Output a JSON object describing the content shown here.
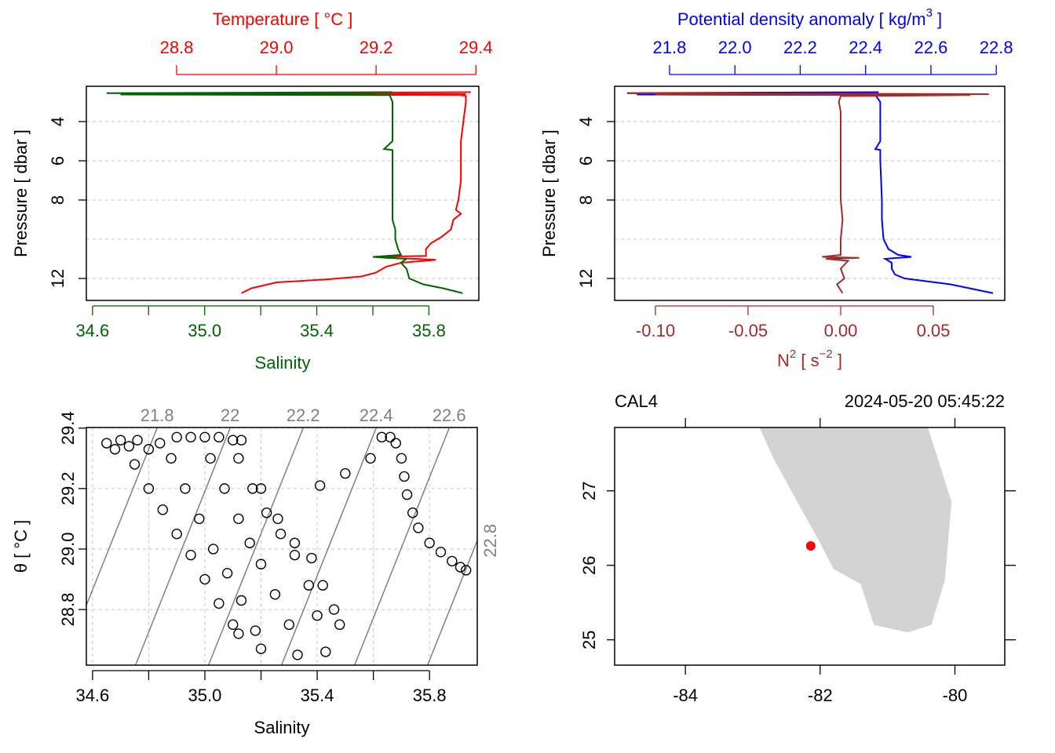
{
  "chart_data": [
    {
      "type": "profile",
      "title": "Temperature [ °C ]",
      "xlabel": "Salinity",
      "ylabel": "Pressure [ dbar ]",
      "ylim": [
        13.12,
        2.2
      ],
      "yticks": [
        4,
        6,
        8,
        12
      ],
      "ygrid": [
        4,
        6,
        8,
        10,
        12
      ],
      "xlim": [
        34.578,
        35.978
      ],
      "xticks": [
        34.6,
        {
          "value": 35,
          "label": "35.0"
        },
        35.4,
        35.8
      ],
      "xminor": [
        34.8,
        35.2,
        35.6
      ],
      "xcolor": "#006400",
      "x2lim": [
        28.619,
        29.406
      ],
      "x2ticks": [
        28.8,
        {
          "value": 29,
          "label": "29.0"
        },
        29.2,
        29.4
      ],
      "x2color": "#ff0000",
      "series": [
        {
          "axis": "x2",
          "color": "#ff0000",
          "pressure": [
            2.5,
            2.55,
            2.6,
            2.62,
            2.65,
            2.7,
            3.0,
            4,
            5,
            6,
            7,
            8,
            8.5,
            8.7,
            9,
            9.5,
            9.9,
            10.2,
            10.5,
            10.85,
            10.9,
            10.95,
            11.0,
            11.05,
            11.2,
            11.4,
            11.7,
            11.9,
            12.05,
            12.2,
            12.5,
            12.75
          ],
          "values": [
            29.39,
            28.95,
            29.38,
            28.9,
            29.37,
            29.38,
            29.38,
            29.375,
            29.37,
            29.37,
            29.37,
            29.365,
            29.36,
            29.37,
            29.355,
            29.35,
            29.33,
            29.31,
            29.3,
            29.3,
            29.2,
            29.22,
            29.28,
            29.32,
            29.25,
            29.22,
            29.2,
            29.17,
            29.1,
            29.0,
            28.95,
            28.93
          ]
        },
        {
          "axis": "x",
          "color": "#006400",
          "pressure": [
            2.5,
            2.55,
            2.6,
            2.62,
            2.65,
            3.0,
            4,
            5,
            5.4,
            5.45,
            5.5,
            6,
            7,
            8,
            9,
            9.5,
            10,
            10.5,
            10.8,
            10.9,
            11.0,
            11.2,
            11.5,
            12.0,
            12.3,
            12.5,
            12.75
          ],
          "values": [
            35.67,
            34.65,
            35.6,
            34.7,
            35.66,
            35.67,
            35.67,
            35.67,
            35.64,
            35.67,
            35.67,
            35.67,
            35.67,
            35.67,
            35.67,
            35.68,
            35.68,
            35.69,
            35.7,
            35.6,
            35.72,
            35.7,
            35.72,
            35.73,
            35.78,
            35.85,
            35.92
          ]
        }
      ]
    },
    {
      "type": "profile",
      "title_parts": [
        {
          "text": "Potential density anomaly [ kg/m"
        },
        {
          "text": "3",
          "sup": true
        },
        {
          "text": " ]"
        }
      ],
      "xlabel_parts": [
        {
          "text": "N"
        },
        {
          "text": "2",
          "sup": true
        },
        {
          "text": " [ s"
        },
        {
          "text": "−2",
          "sup": true
        },
        {
          "text": " ]"
        }
      ],
      "ylabel": "Pressure [ dbar ]",
      "ylim": [
        13.12,
        2.2
      ],
      "yticks": [
        4,
        6,
        8,
        12
      ],
      "ygrid": [
        4,
        6,
        8,
        10,
        12
      ],
      "xlim": [
        -0.12203,
        0.08856
      ],
      "xticks": [
        {
          "value": -0.1,
          "label": "-0.10"
        },
        -0.05,
        {
          "value": 0,
          "label": "0.00"
        },
        0.05
      ],
      "xcolor": "#a52a2a",
      "x2lim": [
        21.632,
        22.826
      ],
      "x2ticks": [
        21.8,
        {
          "value": 22,
          "label": "22.0"
        },
        22.2,
        22.4,
        22.6,
        22.8
      ],
      "x2color": "#0000ff",
      "series": [
        {
          "axis": "x2",
          "color": "#0000ff",
          "pressure": [
            2.5,
            2.55,
            2.6,
            2.62,
            2.65,
            3.0,
            4,
            5,
            5.4,
            5.45,
            5.5,
            6,
            8,
            9,
            10,
            10.5,
            10.8,
            10.9,
            11.0,
            11.2,
            11.5,
            11.8,
            12.0,
            12.3,
            12.75
          ],
          "values": [
            22.44,
            21.67,
            22.4,
            21.7,
            22.43,
            22.445,
            22.445,
            22.445,
            22.43,
            22.445,
            22.445,
            22.445,
            22.45,
            22.45,
            22.455,
            22.47,
            22.5,
            22.54,
            22.46,
            22.48,
            22.48,
            22.49,
            22.52,
            22.66,
            22.79
          ]
        },
        {
          "axis": "x",
          "color": "#a52a2a",
          "pressure": [
            2.55,
            2.6,
            2.62,
            2.65,
            2.7,
            3.0,
            3.5,
            4,
            6,
            8,
            9,
            10,
            10.8,
            10.9,
            10.95,
            11.0,
            11.1,
            11.5,
            12.0,
            12.3,
            12.75
          ],
          "values": [
            -0.115,
            0.08,
            -0.1,
            0.07,
            0.0,
            -0.001,
            0.0,
            0.0,
            0.0,
            0.0,
            0.001,
            0.0,
            0.0,
            -0.01,
            0.01,
            -0.008,
            0.004,
            0.0,
            0.002,
            -0.002,
            0.001
          ]
        }
      ]
    },
    {
      "type": "ts",
      "xlabel": "Salinity",
      "ylabel": "θ [ °C ]",
      "xlim": [
        34.578,
        35.97
      ],
      "xticks": [
        34.6,
        {
          "value": 35,
          "label": "35.0"
        },
        35.4,
        35.8
      ],
      "xminor": [
        34.8,
        35.2,
        35.6
      ],
      "xgrid": [
        34.6,
        34.8,
        35.0,
        35.2,
        35.4,
        35.6,
        35.8
      ],
      "ylim": [
        28.616,
        29.402
      ],
      "yticks": [
        28.8,
        {
          "value": 29,
          "label": "29.0"
        },
        29.2,
        29.4
      ],
      "ygrid": [
        28.8,
        29.0,
        29.2,
        29.4
      ],
      "color": "#000000",
      "isopycnal_color": "#808080",
      "isopycnals": [
        {
          "level": 21.8,
          "S": [
            34.83,
            34.493
          ],
          "T": [
            29.4,
            28.616
          ]
        },
        {
          "level": 22,
          "S": [
            35.09,
            34.753
          ],
          "T": [
            29.4,
            28.616
          ]
        },
        {
          "level": 22.2,
          "S": [
            35.35,
            35.013
          ],
          "T": [
            29.4,
            28.616
          ]
        },
        {
          "level": 22.4,
          "S": [
            35.61,
            35.273
          ],
          "T": [
            29.4,
            28.616
          ]
        },
        {
          "level": 22.6,
          "S": [
            35.87,
            35.533
          ],
          "T": [
            29.4,
            28.616
          ]
        },
        {
          "level": 22.8,
          "S": [
            36.13,
            35.793
          ],
          "T": [
            29.4,
            28.616
          ]
        }
      ],
      "S": [
        34.65,
        34.68,
        34.7,
        34.73,
        34.76,
        34.8,
        34.84,
        34.9,
        34.95,
        35.0,
        35.05,
        35.1,
        35.13,
        34.75,
        34.8,
        34.85,
        34.9,
        34.95,
        35.0,
        35.05,
        35.1,
        35.12,
        34.88,
        34.93,
        34.98,
        35.03,
        35.08,
        35.13,
        35.18,
        35.2,
        35.02,
        35.07,
        35.12,
        35.16,
        35.2,
        35.25,
        35.3,
        35.33,
        35.12,
        35.17,
        35.22,
        35.27,
        35.32,
        35.37,
        35.4,
        35.43,
        35.2,
        35.26,
        35.32,
        35.38,
        35.42,
        35.46,
        35.48,
        35.41,
        35.5,
        35.59,
        35.63,
        35.66,
        35.68,
        35.7,
        35.71,
        35.72,
        35.74,
        35.76,
        35.8,
        35.84,
        35.88,
        35.91,
        35.93
      ],
      "T": [
        29.35,
        29.33,
        29.36,
        29.34,
        29.36,
        29.33,
        29.35,
        29.37,
        29.37,
        29.37,
        29.37,
        29.36,
        29.36,
        29.28,
        29.2,
        29.13,
        29.05,
        28.98,
        28.9,
        28.82,
        28.75,
        28.72,
        29.3,
        29.2,
        29.1,
        29.0,
        28.92,
        28.83,
        28.73,
        28.67,
        29.3,
        29.2,
        29.1,
        29.02,
        28.95,
        28.85,
        28.75,
        28.65,
        29.3,
        29.2,
        29.12,
        29.05,
        28.98,
        28.88,
        28.78,
        28.66,
        29.2,
        29.1,
        29.02,
        28.97,
        28.88,
        28.8,
        28.75,
        29.21,
        29.25,
        29.3,
        29.37,
        29.37,
        29.35,
        29.3,
        29.24,
        29.18,
        29.12,
        29.07,
        29.02,
        28.99,
        28.96,
        28.94,
        28.93
      ]
    },
    {
      "type": "map",
      "station": "CAL4",
      "time": "2024-05-20 05:45:22",
      "xlim": [
        -85.05,
        -79.26
      ],
      "xticks": [
        -84,
        -82,
        -80
      ],
      "ylim": [
        24.66,
        27.85
      ],
      "yticks": [
        25,
        26,
        27
      ],
      "coast": {
        "color": "#d3d3d3",
        "lon": [
          -82.9,
          -82.7,
          -82.4,
          -82.0,
          -81.8,
          -81.4,
          -81.2,
          -80.7,
          -80.35,
          -80.15,
          -80.05,
          -80.4
        ],
        "lat": [
          27.85,
          27.45,
          26.95,
          26.3,
          25.95,
          25.75,
          25.2,
          25.1,
          25.2,
          25.8,
          26.85,
          27.85
        ]
      },
      "lon": -82.14,
      "lat": 26.26,
      "color": "#ff0000"
    }
  ]
}
